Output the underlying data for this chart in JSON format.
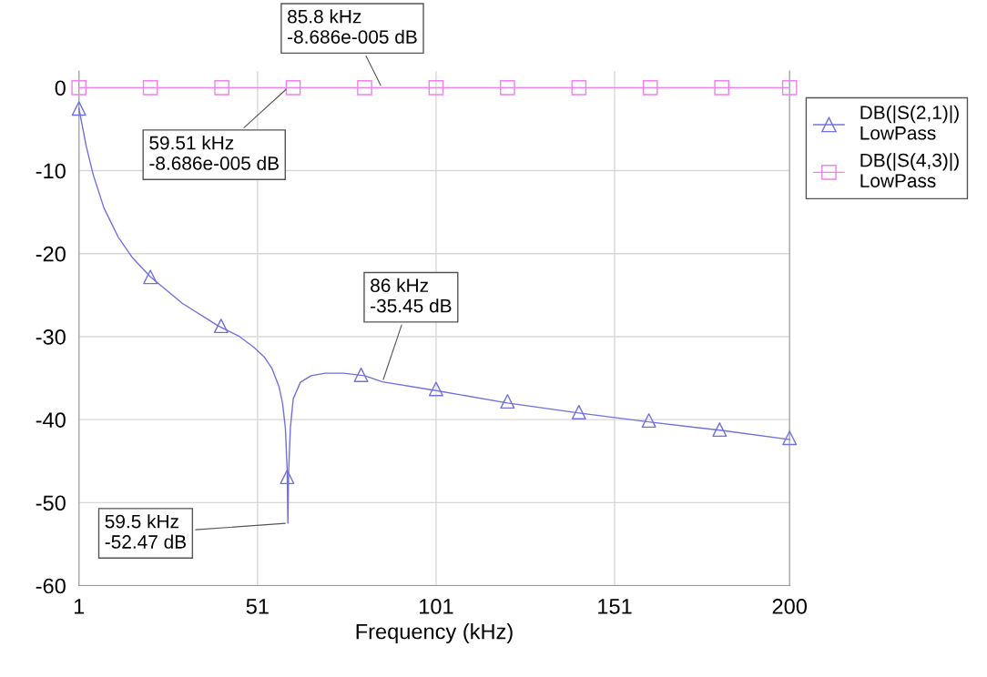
{
  "chart_data": {
    "type": "line",
    "xlabel": "Frequency (kHz)",
    "xlim": [
      1,
      200
    ],
    "xticks": [
      1,
      51,
      101,
      151,
      200
    ],
    "ylim": [
      -60,
      2
    ],
    "yticks": [
      -60,
      -50,
      -40,
      -30,
      -20,
      -10,
      0
    ],
    "grid": true,
    "legend": "right",
    "line_style": "solid",
    "series": [
      {
        "name": "DB(|S(2,1)|)\nLowPass",
        "color": "#7070e0",
        "marker": "none",
        "x": [
          1,
          3,
          5,
          8,
          12,
          16,
          21,
          30,
          40,
          46,
          50,
          53,
          55,
          57,
          58,
          58.8,
          59.3,
          59.5,
          59.7,
          60.2,
          61,
          63,
          66,
          70,
          75,
          81,
          86,
          101,
          121,
          141,
          161,
          181,
          200
        ],
        "values": [
          -2.5,
          -7,
          -10.5,
          -14.5,
          -18,
          -20.5,
          -22.8,
          -26,
          -28.7,
          -30,
          -31.3,
          -32.5,
          -33.8,
          -36,
          -38,
          -41,
          -46,
          -52.47,
          -46.5,
          -41,
          -37.5,
          -35.5,
          -34.7,
          -34.4,
          -34.4,
          -34.7,
          -35.45,
          -36.5,
          -38,
          -39.2,
          -40.3,
          -41.3,
          -42.4
        ]
      },
      {
        "type": "scatter",
        "color": "#7070e0",
        "marker": "triangle",
        "x": [
          1,
          21,
          40.8,
          59.3,
          80,
          101,
          121,
          141,
          160.6,
          180.4,
          200
        ],
        "values": [
          -2.5,
          -22.8,
          -28.7,
          -46.9,
          -34.6,
          -36.3,
          -37.8,
          -39.1,
          -40.1,
          -41.2,
          -42.2
        ]
      },
      {
        "name": "DB(|S(4,3)|)\nLowPass",
        "color": "#f080f0",
        "marker": "square",
        "x": [
          1,
          21,
          41,
          61,
          81,
          101,
          121,
          141,
          161,
          181,
          200
        ],
        "values": [
          0,
          0,
          0,
          0,
          0,
          0,
          0,
          0,
          0,
          0,
          0
        ]
      }
    ],
    "annotations": [
      {
        "text": "85.8 kHz\n-8.686e-005 dB",
        "x": 85.8,
        "y": -8.686e-05
      },
      {
        "text": "59.51 kHz\n-8.686e-005 dB",
        "x": 59.51,
        "y": -8.686e-05
      },
      {
        "text": "86 kHz\n-35.45 dB",
        "x": 86,
        "y": -35.45
      },
      {
        "text": "59.5 kHz\n-52.47 dB",
        "x": 59.5,
        "y": -52.47
      }
    ]
  }
}
